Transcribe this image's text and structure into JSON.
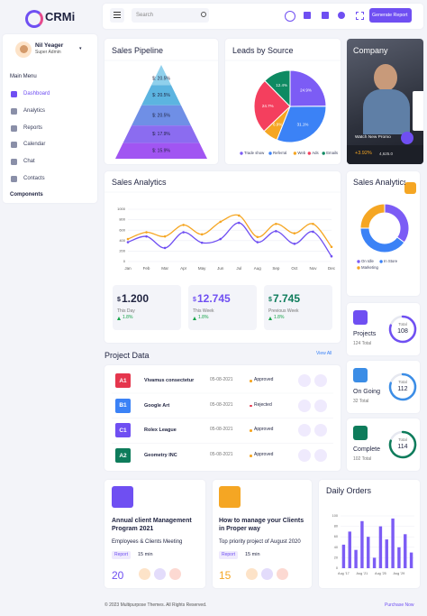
{
  "sidebar": {
    "logo": "CRMi",
    "user_name": "Nil Yeager",
    "user_role": "Super Admin",
    "menu_title": "Main Menu",
    "menu": [
      "Dashboard",
      "Analytics",
      "Reports",
      "Calendar",
      "Chat",
      "Contacts"
    ],
    "section": "Components"
  },
  "topbar": {
    "search_placeholder": "Search",
    "button": "Generate Report"
  },
  "company": {
    "title": "Company",
    "video_caption": "Watch New Promo",
    "change": "+3.92%",
    "amount": "4,625.0"
  },
  "chart_data": [
    {
      "type": "funnel",
      "title": "Sales Pipeline",
      "values": [
        20.5,
        20.5,
        20.5,
        17.9,
        15.9
      ],
      "value_labels": [
        "$: 20.5%",
        "$: 20.5%",
        "$: 20.5%",
        "$: 17.9%",
        "$: 15.9%"
      ],
      "colors": [
        "#8fd0ec",
        "#5cb4e0",
        "#6f8fe6",
        "#8b6cf0",
        "#a155f2"
      ]
    },
    {
      "type": "pie",
      "title": "Leads by Source",
      "categories": [
        "Trade show",
        "Referral",
        "Web",
        "Ads",
        "Emails"
      ],
      "values": [
        24.9,
        31.1,
        6.9,
        24.7,
        12.4
      ],
      "value_labels": [
        "24.9%",
        "31.1%",
        "6.9%",
        "24.7%",
        "12.4%"
      ],
      "colors": [
        "#7c5cf5",
        "#3b82f6",
        "#f5a623",
        "#f43f5e",
        "#0e8a62"
      ]
    },
    {
      "type": "line",
      "title": "Sales Analytics",
      "categories": [
        "Jan",
        "Feb",
        "Mar",
        "Apr",
        "May",
        "Jun",
        "Jul",
        "Aug",
        "Sep",
        "Oct",
        "Nov",
        "Dec"
      ],
      "series": [
        {
          "color": "#f5a623",
          "values": [
            430,
            560,
            480,
            700,
            520,
            760,
            880,
            470,
            720,
            540,
            720,
            280
          ]
        },
        {
          "color": "#6f4ff2",
          "values": [
            370,
            480,
            260,
            560,
            360,
            430,
            740,
            370,
            580,
            340,
            570,
            100
          ]
        }
      ],
      "ylim": [
        0,
        1000
      ],
      "yticks": [
        0,
        200,
        400,
        600,
        800,
        1000
      ],
      "grid": true
    },
    {
      "type": "donut",
      "title": "Sales Analytics",
      "categories": [
        "On Idle",
        "In Store",
        "Marketing"
      ],
      "values": [
        35,
        40,
        25
      ],
      "colors": [
        "#7c5cf5",
        "#3b82f6",
        "#f5a623"
      ]
    },
    {
      "type": "bar",
      "title": "Daily Orders",
      "categories": [
        "Aug '17",
        null,
        null,
        "Aug '21",
        null,
        null,
        "Aug '25",
        null,
        null,
        "Aug '29",
        null,
        null
      ],
      "values": [
        45,
        70,
        35,
        90,
        60,
        20,
        80,
        55,
        95,
        40,
        65,
        30
      ],
      "color": "#7c5cf5",
      "ylim": [
        0,
        100
      ],
      "yticks": [
        0,
        20,
        40,
        60,
        80,
        100
      ],
      "grid": true
    }
  ],
  "stats": [
    {
      "currency": "$",
      "value": "1.200",
      "label": "This Day",
      "change": "1.8%"
    },
    {
      "currency": "$",
      "value": "12.745",
      "label": "This Week",
      "change": "1.8%"
    },
    {
      "currency": "$",
      "value": "7.745",
      "label": "Previous Week",
      "change": "1.8%"
    }
  ],
  "projects_summary": [
    {
      "title": "Projects",
      "total_text": "124 Total",
      "ring_label": "Total",
      "ring_value": "108"
    },
    {
      "title": "On Going",
      "total_text": "32 Total",
      "ring_label": "Total",
      "ring_value": "112"
    },
    {
      "title": "Complete",
      "total_text": "102 Total",
      "ring_label": "Total",
      "ring_value": "114"
    }
  ],
  "project_data": {
    "title": "Project Data",
    "link": "View All",
    "rows": [
      {
        "code": "A1",
        "name": "Vivamus consectetur",
        "date": "05-08-2021",
        "status": "Approved"
      },
      {
        "code": "B1",
        "name": "Google Art",
        "date": "05-08-2021",
        "status": "Rejected"
      },
      {
        "code": "C1",
        "name": "Rolex League",
        "date": "05-08-2021",
        "status": "Approved"
      },
      {
        "code": "A2",
        "name": "Geometry INC",
        "date": "05-08-2021",
        "status": "Approved"
      }
    ]
  },
  "events": [
    {
      "title": "Annual client Management Program 2021",
      "subtitle": "Employees & Clients Meeting",
      "tag": "Report",
      "duration": "15 min",
      "count": "20"
    },
    {
      "title": "How to manage your Clients in Proper way",
      "subtitle": "Top priority project of August 2020",
      "tag": "Report",
      "duration": "15 min",
      "count": "15"
    }
  ],
  "footer": {
    "copyright": "© 2023 Multipurpose Themes. All Rights Reserved.",
    "link": "Purchase Now"
  }
}
